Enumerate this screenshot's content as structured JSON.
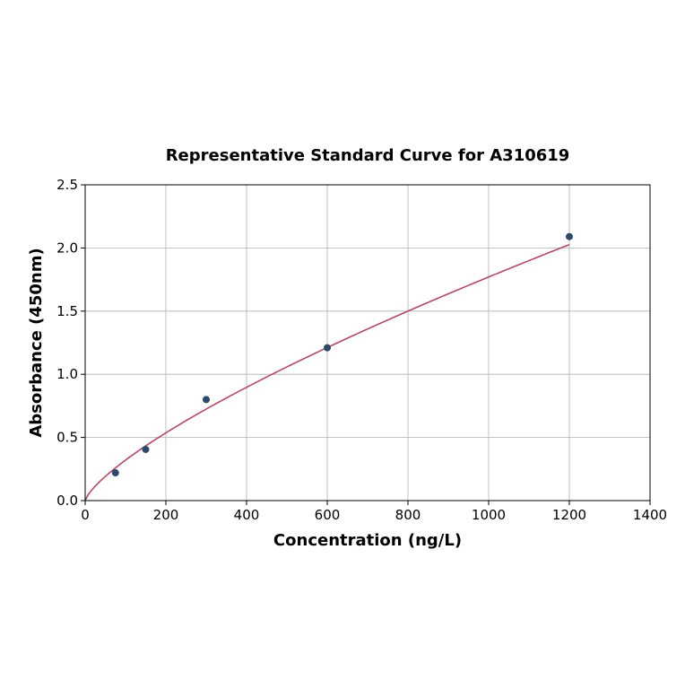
{
  "chart_data": {
    "type": "scatter",
    "title": "Representative Standard Curve for A310619",
    "xlabel": "Concentration (ng/L)",
    "ylabel": "Absorbance (450nm)",
    "xlim": [
      0,
      1400
    ],
    "ylim": [
      0,
      2.5
    ],
    "xticks": [
      0,
      200,
      400,
      600,
      800,
      1000,
      1200,
      1400
    ],
    "yticks": [
      0.0,
      0.5,
      1.0,
      1.5,
      2.0,
      2.5
    ],
    "ytick_labels": [
      "0.0",
      "0.5",
      "1.0",
      "1.5",
      "2.0",
      "2.5"
    ],
    "grid": true,
    "series": [
      {
        "x": [
          75,
          150,
          300,
          600,
          1200
        ],
        "y": [
          0.22,
          0.405,
          0.8,
          1.21,
          2.09
        ]
      }
    ],
    "fit": {
      "type": "power",
      "a": 0.01052,
      "b": 0.742,
      "x_range": [
        0,
        1200
      ]
    },
    "colors": {
      "points": "#2b4a6b",
      "curve": "#b5476b",
      "grid": "#b0b0b0"
    }
  }
}
